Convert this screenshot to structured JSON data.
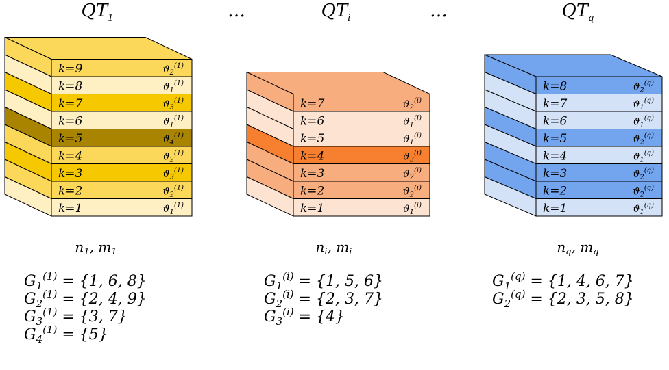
{
  "ellipsis_1": "…",
  "ellipsis_2": "…",
  "stacks": [
    {
      "id": "stack-1",
      "title": {
        "base": "QT",
        "sub": "1"
      },
      "colors": {
        "light": "#fff0c4",
        "mid": "#fbd85a",
        "dark": "#f6c800",
        "darkest": "#a88400",
        "stroke": "#000000"
      },
      "rows_top_to_bottom": [
        {
          "k": "k=9",
          "theta": "ϑ",
          "theta_sub": "2",
          "theta_sup": "(1)",
          "shade": "mid"
        },
        {
          "k": "k=8",
          "theta": "ϑ",
          "theta_sub": "1",
          "theta_sup": "(1)",
          "shade": "light"
        },
        {
          "k": "k=7",
          "theta": "ϑ",
          "theta_sub": "3",
          "theta_sup": "(1)",
          "shade": "dark"
        },
        {
          "k": "k=6",
          "theta": "ϑ",
          "theta_sub": "1",
          "theta_sup": "(1)",
          "shade": "light"
        },
        {
          "k": "k=5",
          "theta": "ϑ",
          "theta_sub": "4",
          "theta_sup": "(1)",
          "shade": "darkest"
        },
        {
          "k": "k=4",
          "theta": "ϑ",
          "theta_sub": "2",
          "theta_sup": "(1)",
          "shade": "mid"
        },
        {
          "k": "k=3",
          "theta": "ϑ",
          "theta_sub": "3",
          "theta_sup": "(1)",
          "shade": "dark"
        },
        {
          "k": "k=2",
          "theta": "ϑ",
          "theta_sub": "2",
          "theta_sup": "(1)",
          "shade": "mid"
        },
        {
          "k": "k=1",
          "theta": "ϑ",
          "theta_sub": "1",
          "theta_sup": "(1)",
          "shade": "light"
        }
      ],
      "nm": {
        "n": "n",
        "n_sub": "1",
        "sep": ", ",
        "m": "m",
        "m_sub": "1"
      },
      "groups": [
        {
          "G": "G",
          "sub": "1",
          "sup": "(1)",
          "set": "= {1, 6, 8}"
        },
        {
          "G": "G",
          "sub": "2",
          "sup": "(1)",
          "set": "= {2, 4, 9}"
        },
        {
          "G": "G",
          "sub": "3",
          "sup": "(1)",
          "set": "= {3, 7}"
        },
        {
          "G": "G",
          "sub": "4",
          "sup": "(1)",
          "set": "= {5}"
        }
      ]
    },
    {
      "id": "stack-i",
      "title": {
        "base": "QT",
        "sub": "i"
      },
      "colors": {
        "light": "#fde3d2",
        "mid": "#f8ad7f",
        "dark": "#f6802f",
        "darkest": "#f6802f",
        "stroke": "#000000"
      },
      "rows_top_to_bottom": [
        {
          "k": "k=7",
          "theta": "ϑ",
          "theta_sub": "2",
          "theta_sup": "(i)",
          "shade": "mid"
        },
        {
          "k": "k=6",
          "theta": "ϑ",
          "theta_sub": "1",
          "theta_sup": "(i)",
          "shade": "light"
        },
        {
          "k": "k=5",
          "theta": "ϑ",
          "theta_sub": "1",
          "theta_sup": "(i)",
          "shade": "light"
        },
        {
          "k": "k=4",
          "theta": "ϑ",
          "theta_sub": "3",
          "theta_sup": "(i)",
          "shade": "dark"
        },
        {
          "k": "k=3",
          "theta": "ϑ",
          "theta_sub": "2",
          "theta_sup": "(i)",
          "shade": "mid"
        },
        {
          "k": "k=2",
          "theta": "ϑ",
          "theta_sub": "2",
          "theta_sup": "(i)",
          "shade": "mid"
        },
        {
          "k": "k=1",
          "theta": "ϑ",
          "theta_sub": "1",
          "theta_sup": "(i)",
          "shade": "light"
        }
      ],
      "nm": {
        "n": "n",
        "n_sub": "i",
        "sep": ", ",
        "m": "m",
        "m_sub": "i"
      },
      "groups": [
        {
          "G": "G",
          "sub": "1",
          "sup": "(i)",
          "set": "= {1, 5, 6}"
        },
        {
          "G": "G",
          "sub": "2",
          "sup": "(i)",
          "set": "= {2, 3, 7}"
        },
        {
          "G": "G",
          "sub": "3",
          "sup": "(i)",
          "set": "= {4}"
        }
      ]
    },
    {
      "id": "stack-q",
      "title": {
        "base": "QT",
        "sub": "q"
      },
      "colors": {
        "light": "#d4e2f8",
        "mid": "#73a4ee",
        "dark": "#73a4ee",
        "darkest": "#73a4ee",
        "stroke": "#000000"
      },
      "rows_top_to_bottom": [
        {
          "k": "k=8",
          "theta": "ϑ",
          "theta_sub": "2",
          "theta_sup": "(q)",
          "shade": "mid"
        },
        {
          "k": "k=7",
          "theta": "ϑ",
          "theta_sub": "1",
          "theta_sup": "(q)",
          "shade": "light"
        },
        {
          "k": "k=6",
          "theta": "ϑ",
          "theta_sub": "1",
          "theta_sup": "(q)",
          "shade": "light"
        },
        {
          "k": "k=5",
          "theta": "ϑ",
          "theta_sub": "2",
          "theta_sup": "(q)",
          "shade": "mid"
        },
        {
          "k": "k=4",
          "theta": "ϑ",
          "theta_sub": "1",
          "theta_sup": "(q)",
          "shade": "light"
        },
        {
          "k": "k=3",
          "theta": "ϑ",
          "theta_sub": "2",
          "theta_sup": "(q)",
          "shade": "mid"
        },
        {
          "k": "k=2",
          "theta": "ϑ",
          "theta_sub": "2",
          "theta_sup": "(q)",
          "shade": "mid"
        },
        {
          "k": "k=1",
          "theta": "ϑ",
          "theta_sub": "1",
          "theta_sup": "(q)",
          "shade": "light"
        }
      ],
      "nm": {
        "n": "n",
        "n_sub": "q",
        "sep": ", ",
        "m": "m",
        "m_sub": "q"
      },
      "groups": [
        {
          "G": "G",
          "sub": "1",
          "sup": "(q)",
          "set": "= {1, 4, 6, 7}"
        },
        {
          "G": "G",
          "sub": "2",
          "sup": "(q)",
          "set": "= {2, 3, 5, 8}"
        }
      ]
    }
  ]
}
